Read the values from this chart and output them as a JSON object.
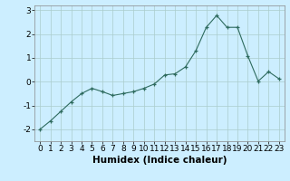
{
  "x": [
    0,
    1,
    2,
    3,
    4,
    5,
    6,
    7,
    8,
    9,
    10,
    11,
    12,
    13,
    14,
    15,
    16,
    17,
    18,
    19,
    20,
    21,
    22,
    23
  ],
  "y": [
    -2.0,
    -1.65,
    -1.25,
    -0.85,
    -0.5,
    -0.28,
    -0.42,
    -0.58,
    -0.5,
    -0.42,
    -0.28,
    -0.1,
    0.28,
    0.33,
    0.62,
    1.3,
    2.28,
    2.78,
    2.28,
    2.28,
    1.08,
    0.02,
    0.42,
    0.12
  ],
  "xlabel": "Humidex (Indice chaleur)",
  "bg_color": "#cceeff",
  "grid_color": "#aacccc",
  "line_color": "#2e6b5e",
  "ylim": [
    -2.5,
    3.2
  ],
  "xlim": [
    -0.5,
    23.5
  ],
  "yticks": [
    -2,
    -1,
    0,
    1,
    2,
    3
  ],
  "xticks": [
    0,
    1,
    2,
    3,
    4,
    5,
    6,
    7,
    8,
    9,
    10,
    11,
    12,
    13,
    14,
    15,
    16,
    17,
    18,
    19,
    20,
    21,
    22,
    23
  ],
  "tick_fontsize": 6.5,
  "xlabel_fontsize": 7.5
}
